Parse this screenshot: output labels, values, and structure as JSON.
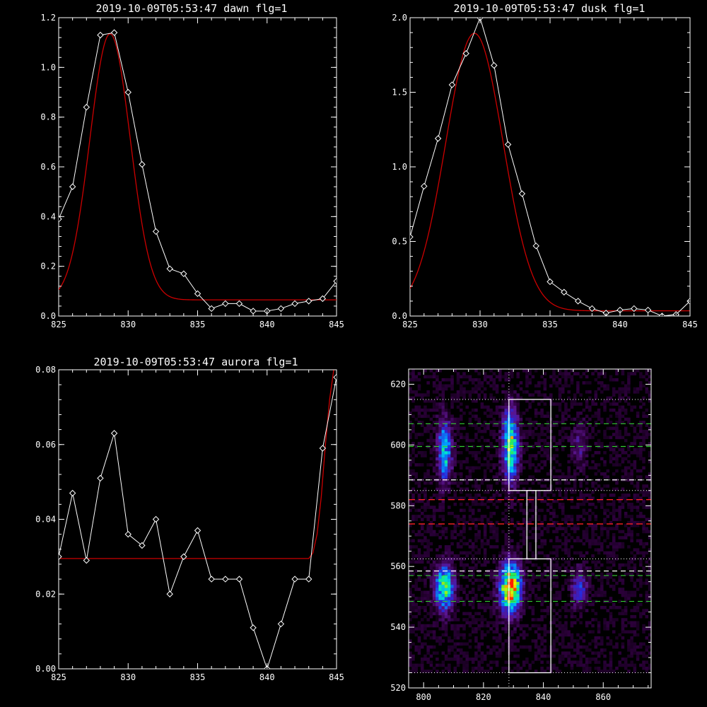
{
  "colors": {
    "background": "#000000",
    "axes": "#ffffff",
    "data_line": "#ffffff",
    "fit_line": "#cc0000",
    "green_dash": "#33cc33",
    "red_dash": "#ff2222",
    "white_dash": "#ffffff"
  },
  "chart_data": [
    {
      "type": "line",
      "title": "2019-10-09T05:53:47 dawn flg=1",
      "xlim": [
        825,
        845
      ],
      "ylim": [
        0,
        1.2
      ],
      "xticks": [
        "825",
        "830",
        "835",
        "840",
        "845"
      ],
      "yticks": [
        "0.0",
        "0.2",
        "0.4",
        "0.6",
        "0.8",
        "1.0",
        "1.2"
      ],
      "xtick_values": [
        825,
        830,
        835,
        840,
        845
      ],
      "ytick_values": [
        0,
        0.2,
        0.4,
        0.6,
        0.8,
        1.0,
        1.2
      ],
      "series": [
        {
          "role": "data",
          "marker": "diamond",
          "x": [
            825,
            826,
            827,
            828,
            829,
            830,
            831,
            832,
            833,
            834,
            835,
            836,
            837,
            838,
            839,
            840,
            841,
            842,
            843,
            844,
            845
          ],
          "y": [
            0.39,
            0.52,
            0.84,
            1.13,
            1.14,
            0.9,
            0.61,
            0.34,
            0.19,
            0.17,
            0.09,
            0.03,
            0.05,
            0.05,
            0.02,
            0.02,
            0.03,
            0.05,
            0.06,
            0.07,
            0.14
          ]
        },
        {
          "role": "fit",
          "gaussian": {
            "amplitude": 1.07,
            "center": 828.7,
            "sigma": 1.45,
            "offset": 0.065
          }
        }
      ]
    },
    {
      "type": "line",
      "title": "2019-10-09T05:53:47 dusk flg=1",
      "xlim": [
        825,
        845
      ],
      "ylim": [
        0,
        2.0
      ],
      "xticks": [
        "825",
        "830",
        "835",
        "840",
        "845"
      ],
      "yticks": [
        "0.0",
        "0.5",
        "1.0",
        "1.5",
        "2.0"
      ],
      "xtick_values": [
        825,
        830,
        835,
        840,
        845
      ],
      "ytick_values": [
        0,
        0.5,
        1.0,
        1.5,
        2.0
      ],
      "series": [
        {
          "role": "data",
          "marker": "diamond",
          "x": [
            825,
            826,
            827,
            828,
            829,
            830,
            831,
            832,
            833,
            834,
            835,
            836,
            837,
            838,
            839,
            840,
            841,
            842,
            843,
            844,
            845
          ],
          "y": [
            0.53,
            0.87,
            1.19,
            1.55,
            1.76,
            2.0,
            1.68,
            1.15,
            0.82,
            0.47,
            0.23,
            0.16,
            0.1,
            0.05,
            0.02,
            0.04,
            0.05,
            0.04,
            0.0,
            0.01,
            0.1
          ]
        },
        {
          "role": "fit",
          "gaussian": {
            "amplitude": 1.86,
            "center": 829.6,
            "sigma": 2.05,
            "offset": 0.035
          }
        }
      ]
    },
    {
      "type": "line",
      "title": "2019-10-09T05:53:47 aurora flg=1",
      "xlim": [
        825,
        845
      ],
      "ylim": [
        0,
        0.08
      ],
      "xticks": [
        "825",
        "830",
        "835",
        "840",
        "845"
      ],
      "yticks": [
        "0.00",
        "0.02",
        "0.04",
        "0.06",
        "0.08"
      ],
      "xtick_values": [
        825,
        830,
        835,
        840,
        845
      ],
      "ytick_values": [
        0,
        0.02,
        0.04,
        0.06,
        0.08
      ],
      "series": [
        {
          "role": "data",
          "marker": "diamond",
          "x": [
            825,
            826,
            827,
            828,
            829,
            830,
            831,
            832,
            833,
            834,
            835,
            836,
            837,
            838,
            839,
            840,
            841,
            842,
            843,
            844,
            845
          ],
          "y": [
            0.03,
            0.047,
            0.029,
            0.051,
            0.063,
            0.036,
            0.033,
            0.04,
            0.02,
            0.03,
            0.037,
            0.024,
            0.024,
            0.024,
            0.011,
            0.0,
            0.012,
            0.024,
            0.024,
            0.059,
            0.078
          ]
        },
        {
          "role": "fit",
          "x": [
            825,
            843.0,
            843.3,
            843.6,
            843.9,
            844.2,
            844.5,
            844.8,
            845
          ],
          "y": [
            0.0295,
            0.0295,
            0.031,
            0.036,
            0.046,
            0.06,
            0.072,
            0.08,
            0.085
          ]
        }
      ]
    },
    {
      "type": "heatmap",
      "title": "",
      "xlim": [
        795,
        876
      ],
      "ylim": [
        520,
        625
      ],
      "xticks": [
        "800",
        "820",
        "840",
        "860"
      ],
      "yticks": [
        "520",
        "540",
        "560",
        "580",
        "600",
        "620"
      ],
      "xtick_values": [
        800,
        820,
        840,
        860
      ],
      "ytick_values": [
        520,
        540,
        560,
        580,
        600,
        620
      ],
      "blobs": [
        {
          "x": 807,
          "y": 598,
          "sx": 1.6,
          "sy": 7,
          "peak": 0.55
        },
        {
          "x": 829,
          "y": 600,
          "sx": 1.8,
          "sy": 8,
          "peak": 0.72
        },
        {
          "x": 807,
          "y": 553,
          "sx": 2.2,
          "sy": 5,
          "peak": 0.7
        },
        {
          "x": 829,
          "y": 553,
          "sx": 2.4,
          "sy": 5.5,
          "peak": 1.0
        },
        {
          "x": 852,
          "y": 553,
          "sx": 1.8,
          "sy": 4,
          "peak": 0.35
        },
        {
          "x": 852,
          "y": 600,
          "sx": 1.8,
          "sy": 5,
          "peak": 0.18
        }
      ],
      "overlays": {
        "white_dotted_h": [
          615,
          588.5,
          585,
          562.5,
          525
        ],
        "white_dashed_h": [
          588.5,
          558.5
        ],
        "green_dashed_h": [
          607,
          599.5,
          557,
          548.5
        ],
        "red_dashed_h": [
          582,
          574
        ],
        "white_dotted_v": [
          828.5
        ],
        "boxes": [
          {
            "x0": 828.5,
            "x1": 842.5,
            "y0": 585,
            "y1": 615
          },
          {
            "x0": 834.5,
            "x1": 837.5,
            "y0": 562.5,
            "y1": 585
          },
          {
            "x0": 828.5,
            "x1": 842.5,
            "y0": 525,
            "y1": 562.5
          }
        ]
      }
    }
  ]
}
